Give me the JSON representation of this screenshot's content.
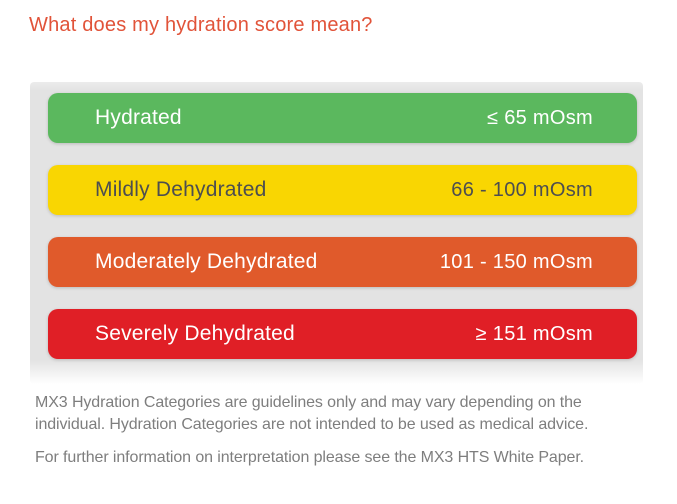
{
  "heading": {
    "text": "What does my hydration score mean?",
    "color": "#e15339"
  },
  "categories": [
    {
      "label": "Hydrated",
      "range": "≤ 65 mOsm",
      "color": "#5bb85e",
      "text_color": "#ffffff"
    },
    {
      "label": "Mildly Dehydrated",
      "range": "66 - 100 mOsm",
      "color": "#f9d602",
      "text_color": "#4d4e50"
    },
    {
      "label": "Moderately Dehydrated",
      "range": "101 - 150 mOsm",
      "color": "#e05a2b",
      "text_color": "#ffffff"
    },
    {
      "label": "Severely Dehydrated",
      "range": "≥ 151 mOsm",
      "color": "#e01f26",
      "text_color": "#ffffff"
    }
  ],
  "disclaimer": {
    "line1": "MX3 Hydration Categories are guidelines only and may vary depending on the",
    "line2": "individual. Hydration Categories are not intended to be used as medical advice.",
    "line3": "For further information on interpretation please see the MX3 HTS White Paper.",
    "color": "#7e7e7e"
  }
}
